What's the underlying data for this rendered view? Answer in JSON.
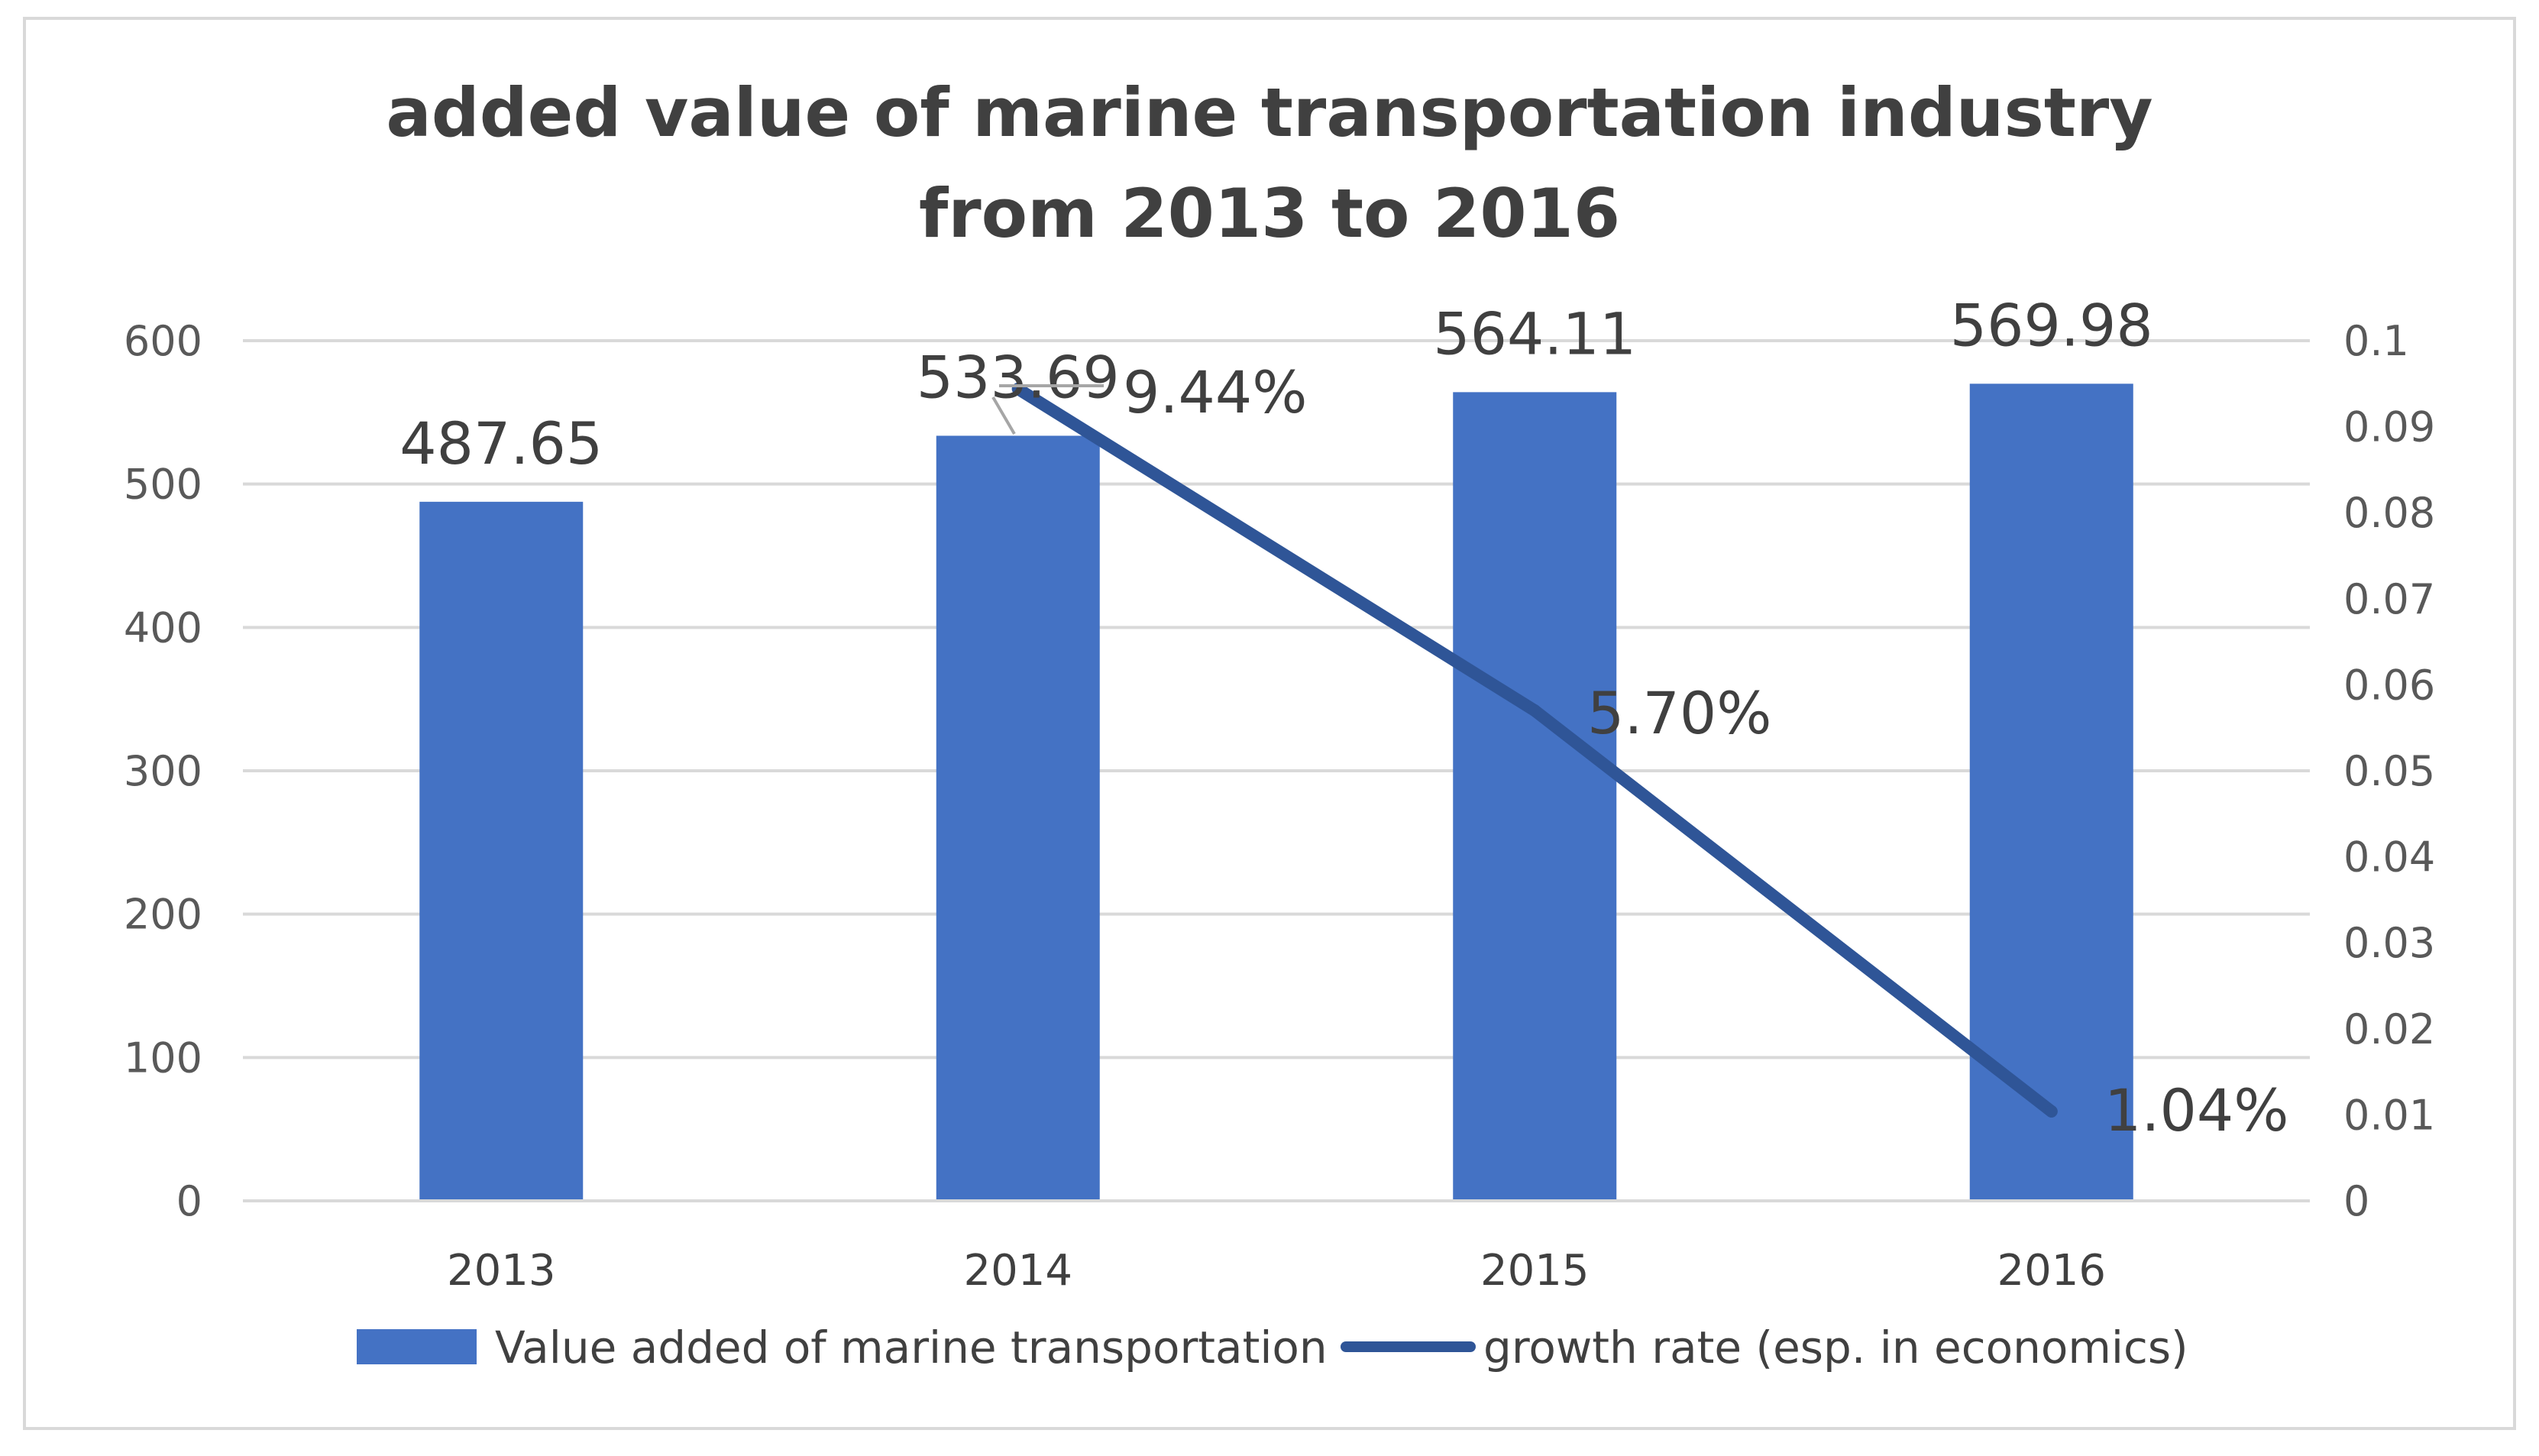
{
  "chart_data": {
    "type": "bar",
    "title": "added value of marine transportation industry from 2013 to 2016",
    "title_lines": [
      "added value of marine transportation industry",
      "from 2013 to 2016"
    ],
    "categories": [
      "2013",
      "2014",
      "2015",
      "2016"
    ],
    "series": [
      {
        "name": "Value added of marine transportation",
        "type": "bar",
        "axis": "left",
        "values": [
          487.65,
          533.69,
          564.11,
          569.98
        ],
        "labels": [
          "487.65",
          "533.69",
          "564.11",
          "569.98"
        ],
        "color": "#4472C4"
      },
      {
        "name": "growth rate (esp. in economics)",
        "type": "line",
        "axis": "right",
        "x": [
          "2014",
          "2015",
          "2016"
        ],
        "values": [
          0.0944,
          0.057,
          0.0104
        ],
        "labels": [
          "9.44%",
          "5.70%",
          "1.04%"
        ],
        "color": "#2F5597"
      }
    ],
    "y_left": {
      "min": 0,
      "max": 600,
      "ticks": [
        "0",
        "100",
        "200",
        "300",
        "400",
        "500",
        "600"
      ]
    },
    "y_right": {
      "min": 0,
      "max": 0.1,
      "ticks": [
        "0",
        "0.01",
        "0.02",
        "0.03",
        "0.04",
        "0.05",
        "0.06",
        "0.07",
        "0.08",
        "0.09",
        "0.1"
      ]
    },
    "xlabel": "",
    "ylabel": "",
    "grid": true,
    "legend_position": "bottom"
  }
}
